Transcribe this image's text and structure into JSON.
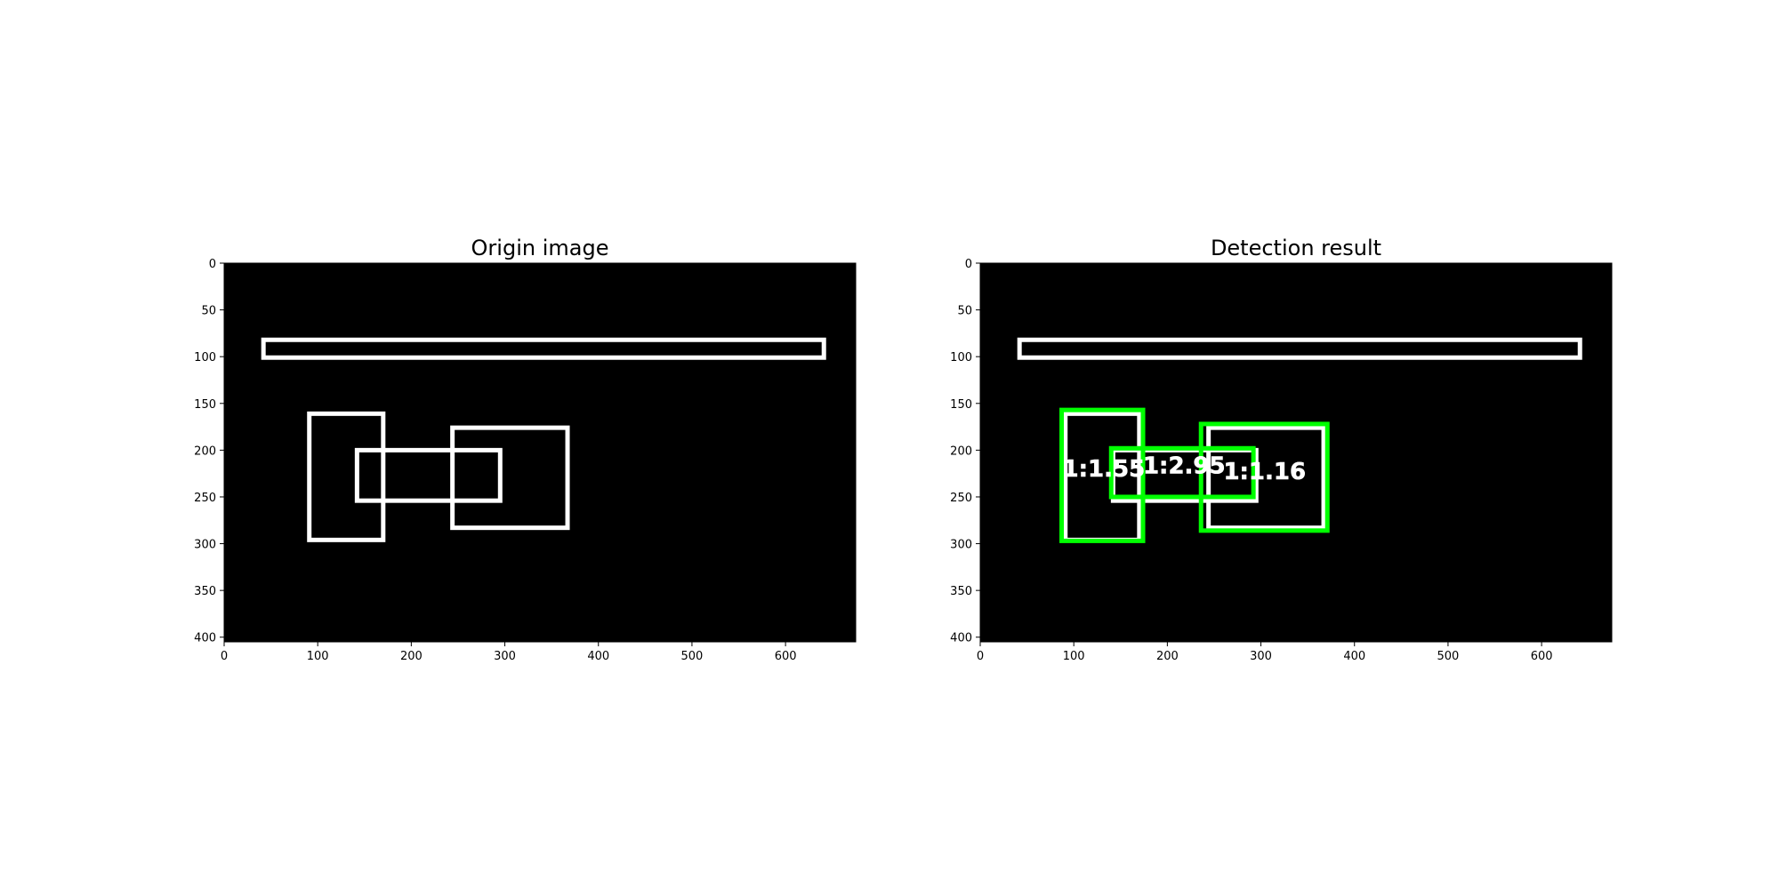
{
  "chart_data": [
    {
      "type": "image",
      "title": "Origin image",
      "xlim": [
        0,
        675
      ],
      "ylim": [
        405,
        0
      ],
      "xticks": [
        0,
        100,
        200,
        300,
        400,
        500,
        600
      ],
      "yticks": [
        0,
        50,
        100,
        150,
        200,
        250,
        300,
        350,
        400
      ],
      "background": "#000000",
      "outline_color": "#ffffff",
      "rectangles": [
        {
          "x0": 42,
          "y0": 82,
          "x1": 641,
          "y1": 101
        },
        {
          "x0": 91,
          "y0": 161,
          "x1": 170,
          "y1": 296
        },
        {
          "x0": 244,
          "y0": 176,
          "x1": 367,
          "y1": 283
        },
        {
          "x0": 142,
          "y0": 200,
          "x1": 295,
          "y1": 254
        }
      ]
    },
    {
      "type": "image",
      "title": "Detection result",
      "xlim": [
        0,
        675
      ],
      "ylim": [
        405,
        0
      ],
      "xticks": [
        0,
        100,
        200,
        300,
        400,
        500,
        600
      ],
      "yticks": [
        0,
        50,
        100,
        150,
        200,
        250,
        300,
        350,
        400
      ],
      "background": "#000000",
      "outline_color": "#ffffff",
      "detection_color": "#00ff00",
      "rectangles": [
        {
          "x0": 42,
          "y0": 82,
          "x1": 641,
          "y1": 101
        },
        {
          "x0": 91,
          "y0": 161,
          "x1": 170,
          "y1": 296
        },
        {
          "x0": 244,
          "y0": 176,
          "x1": 367,
          "y1": 283
        },
        {
          "x0": 142,
          "y0": 200,
          "x1": 295,
          "y1": 254
        }
      ],
      "detections": [
        {
          "x0": 87,
          "y0": 157,
          "x1": 174,
          "y1": 297,
          "label": "1:1.55",
          "label_x": 132,
          "label_y": 228
        },
        {
          "x0": 140,
          "y0": 198,
          "x1": 292,
          "y1": 250,
          "label": "1:2.95",
          "label_x": 218,
          "label_y": 225
        },
        {
          "x0": 236,
          "y0": 172,
          "x1": 371,
          "y1": 286,
          "label": "1:1.16",
          "label_x": 304,
          "label_y": 231
        }
      ]
    }
  ]
}
